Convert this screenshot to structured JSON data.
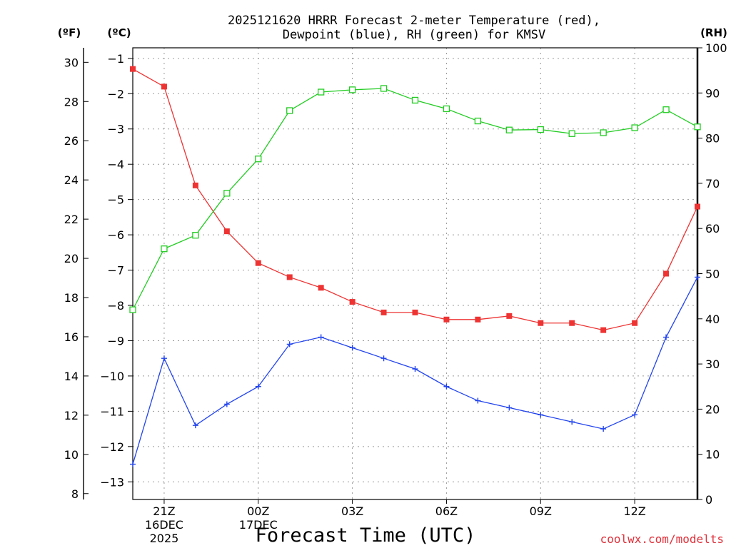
{
  "chart_data": {
    "type": "line",
    "title_line1": "2025121620 HRRR Forecast 2-meter Temperature (red),",
    "title_line2": "Dewpoint (blue), RH (green) for KMSV",
    "unit_f": "(ºF)",
    "unit_c": "(ºC)",
    "unit_rh": "(RH)",
    "xlabel": "Forecast Time (UTC)",
    "credit": "coolwx.com/modelts",
    "x_ticks": [
      {
        "hour": 1,
        "lines": [
          "21Z",
          "16DEC",
          "2025"
        ]
      },
      {
        "hour": 4,
        "lines": [
          "00Z",
          "17DEC"
        ]
      },
      {
        "hour": 7,
        "lines": [
          "03Z"
        ]
      },
      {
        "hour": 10,
        "lines": [
          "06Z"
        ]
      },
      {
        "hour": 13,
        "lines": [
          "09Z"
        ]
      },
      {
        "hour": 16,
        "lines": [
          "12Z"
        ]
      }
    ],
    "xlim": [
      0,
      18
    ],
    "celsius_ticks": [
      "−1",
      "−2",
      "−3",
      "−4",
      "−5",
      "−6",
      "−7",
      "−8",
      "−9",
      "−10",
      "−11",
      "−12",
      "−13"
    ],
    "celsius_tick_values": [
      -1,
      -2,
      -3,
      -4,
      -5,
      -6,
      -7,
      -8,
      -9,
      -10,
      -11,
      -12,
      -13
    ],
    "fahrenheit_ticks": [
      "30",
      "28",
      "26",
      "24",
      "22",
      "20",
      "18",
      "16",
      "14",
      "12",
      "10",
      "8"
    ],
    "fahrenheit_tick_values": [
      30,
      28,
      26,
      24,
      22,
      20,
      18,
      16,
      14,
      12,
      10,
      8
    ],
    "rh_ticks": [
      "100",
      "90",
      "80",
      "70",
      "60",
      "50",
      "40",
      "30",
      "20",
      "10",
      "0"
    ],
    "rh_tick_values": [
      100,
      90,
      80,
      70,
      60,
      50,
      40,
      30,
      20,
      10,
      0
    ],
    "celsius_ylim": [
      -13.5,
      -0.7
    ],
    "rh_ylim": [
      0,
      100
    ],
    "series": [
      {
        "name": "Temperature",
        "unit": "C",
        "color": "#ee3333",
        "marker": "filled-square",
        "hours": [
          0,
          1,
          2,
          3,
          4,
          5,
          6,
          7,
          8,
          9,
          10,
          11,
          12,
          13,
          14,
          15,
          16,
          17,
          18
        ],
        "values": [
          -1.3,
          -1.8,
          -4.6,
          -5.9,
          -6.8,
          -7.2,
          -7.5,
          -7.9,
          -8.2,
          -8.2,
          -8.4,
          -8.4,
          -8.3,
          -8.5,
          -8.5,
          -8.7,
          -8.5,
          -7.1,
          -5.2
        ]
      },
      {
        "name": "Dewpoint",
        "unit": "C",
        "color": "#2244ee",
        "marker": "plus",
        "hours": [
          0,
          1,
          2,
          3,
          4,
          5,
          6,
          7,
          8,
          9,
          10,
          11,
          12,
          13,
          14,
          15,
          16,
          17,
          18
        ],
        "values": [
          -12.5,
          -9.5,
          -11.4,
          -10.8,
          -10.3,
          -9.1,
          -8.9,
          -9.2,
          -9.5,
          -9.8,
          -10.3,
          -10.7,
          -10.9,
          -11.1,
          -11.3,
          -11.5,
          -11.1,
          -8.9,
          -7.2
        ]
      },
      {
        "name": "RH",
        "unit": "%",
        "color": "#22cc22",
        "marker": "open-square",
        "hours": [
          0,
          1,
          2,
          3,
          4,
          5,
          6,
          7,
          8,
          9,
          10,
          11,
          12,
          13,
          14,
          15,
          16,
          17,
          18
        ],
        "values": [
          42.0,
          55.5,
          58.5,
          67.8,
          75.4,
          86.1,
          90.2,
          90.7,
          91.0,
          88.4,
          86.5,
          83.8,
          81.8,
          81.9,
          81.0,
          81.2,
          82.3,
          86.3,
          82.5
        ]
      }
    ]
  }
}
